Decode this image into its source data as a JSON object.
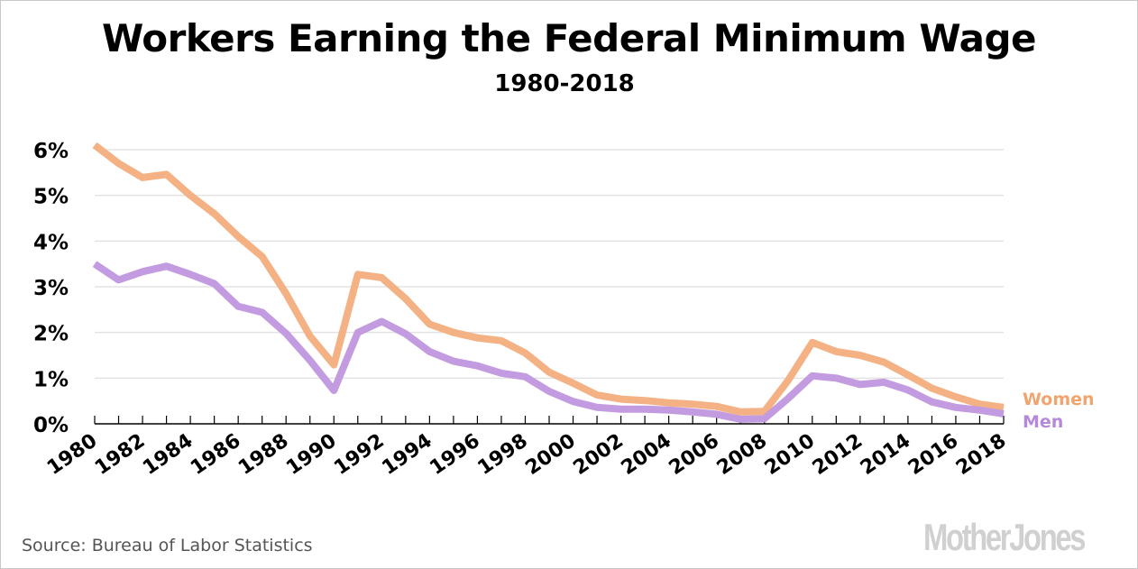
{
  "chart_data": {
    "type": "line",
    "title": "Workers Earning the Federal Minimum Wage",
    "subtitle": "1980-2018",
    "xlabel": "",
    "ylabel": "",
    "x": [
      1980,
      1981,
      1982,
      1983,
      1984,
      1985,
      1986,
      1987,
      1988,
      1989,
      1990,
      1991,
      1992,
      1993,
      1994,
      1995,
      1996,
      1997,
      1998,
      1999,
      2000,
      2001,
      2002,
      2003,
      2004,
      2005,
      2006,
      2007,
      2008,
      2009,
      2010,
      2011,
      2012,
      2013,
      2014,
      2015,
      2016,
      2017,
      2018
    ],
    "x_tick_labels": [
      "1980",
      "1982",
      "1984",
      "1986",
      "1988",
      "1990",
      "1992",
      "1994",
      "1996",
      "1998",
      "2000",
      "2002",
      "2004",
      "2006",
      "2008",
      "2010",
      "2012",
      "2014",
      "2016",
      "2018"
    ],
    "y_tick_labels": [
      "0%",
      "1%",
      "2%",
      "3%",
      "4%",
      "5%",
      "6%"
    ],
    "y_ticks": [
      0,
      1,
      2,
      3,
      4,
      5,
      6
    ],
    "ylim": [
      0,
      6
    ],
    "xlim": [
      1980,
      2018
    ],
    "grid": "horizontal",
    "legend_placement": "right-end-of-lines",
    "series": [
      {
        "name": "Women",
        "color": "#F4B183",
        "label_color": "#F2A46E",
        "values": [
          6.1,
          5.7,
          5.39,
          5.46,
          5.0,
          4.6,
          4.1,
          3.66,
          2.85,
          1.92,
          1.29,
          3.27,
          3.2,
          2.74,
          2.18,
          2.0,
          1.88,
          1.82,
          1.55,
          1.13,
          0.89,
          0.63,
          0.54,
          0.51,
          0.46,
          0.43,
          0.38,
          0.26,
          0.27,
          0.96,
          1.78,
          1.58,
          1.5,
          1.35,
          1.07,
          0.78,
          0.59,
          0.43,
          0.36
        ]
      },
      {
        "name": "Men",
        "color": "#C39BE0",
        "label_color": "#B688DA",
        "values": [
          3.5,
          3.15,
          3.33,
          3.45,
          3.27,
          3.07,
          2.57,
          2.44,
          1.98,
          1.39,
          0.73,
          2.0,
          2.24,
          1.97,
          1.58,
          1.37,
          1.27,
          1.11,
          1.03,
          0.71,
          0.49,
          0.36,
          0.32,
          0.32,
          0.3,
          0.26,
          0.21,
          0.1,
          0.11,
          0.56,
          1.05,
          1.0,
          0.86,
          0.91,
          0.74,
          0.48,
          0.36,
          0.3,
          0.22
        ]
      }
    ]
  },
  "source": "Source: Bureau of Labor Statistics",
  "logo": "MotherJones"
}
